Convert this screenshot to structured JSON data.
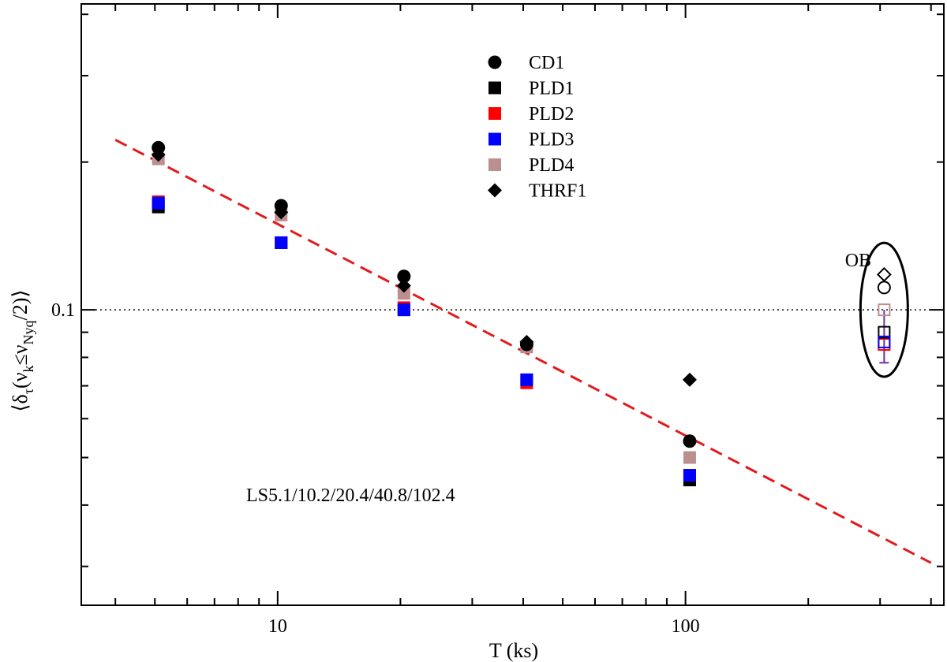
{
  "chart_data": {
    "type": "scatter",
    "xlabel": "T (ks)",
    "ylabel": {
      "open": "⟨",
      "delta": "δ",
      "delta_sub": "τ",
      "paren_open": "(",
      "nu": "ν",
      "nu_sub_k": "k",
      "leq": "≤",
      "nu_sub_nyq": "Nyq",
      "tail": "/2)",
      "close": "⟩"
    },
    "x_scale": "log",
    "y_scale": "log",
    "xlim": [
      3.3,
      430
    ],
    "ylim": [
      0.025,
      0.42
    ],
    "x_ticks": [
      {
        "value": 10,
        "label": "10"
      },
      {
        "value": 100,
        "label": "100"
      }
    ],
    "y_ticks": [
      {
        "value": 0.1,
        "label": "0.1"
      }
    ],
    "reference_line": {
      "y": 0.1,
      "style": "dotted"
    },
    "legend": {
      "placement": "top-center",
      "entries": [
        {
          "name": "CD1",
          "marker": "circle",
          "color": "#000000"
        },
        {
          "name": "PLD1",
          "marker": "square",
          "color": "#000000"
        },
        {
          "name": "PLD2",
          "marker": "square",
          "color": "#ff0000"
        },
        {
          "name": "PLD3",
          "marker": "square",
          "color": "#0000ff"
        },
        {
          "name": "PLD4",
          "marker": "square",
          "color": "#bc8f8f"
        },
        {
          "name": "THRF1",
          "marker": "diamond",
          "color": "#000000"
        }
      ]
    },
    "series": [
      {
        "name": "PLD1",
        "marker": "square",
        "color": "#000000",
        "points": [
          [
            5.1,
            0.162
          ],
          [
            10.2,
            0.137
          ],
          [
            20.4,
            0.1
          ],
          [
            40.8,
            0.072
          ],
          [
            102.4,
            0.045
          ]
        ]
      },
      {
        "name": "PLD2",
        "marker": "square",
        "color": "#ff0000",
        "points": [
          [
            5.1,
            0.166
          ],
          [
            10.2,
            0.137
          ],
          [
            20.4,
            0.101
          ],
          [
            40.8,
            0.071
          ],
          [
            102.4,
            0.046
          ]
        ]
      },
      {
        "name": "PLD3",
        "marker": "square",
        "color": "#0000ff",
        "points": [
          [
            5.1,
            0.165
          ],
          [
            10.2,
            0.137
          ],
          [
            20.4,
            0.1
          ],
          [
            40.8,
            0.072
          ],
          [
            102.4,
            0.046
          ]
        ]
      },
      {
        "name": "PLD4",
        "marker": "square",
        "color": "#bc8f8f",
        "points": [
          [
            5.1,
            0.203
          ],
          [
            10.2,
            0.156
          ],
          [
            20.4,
            0.108
          ],
          [
            40.8,
            0.084
          ],
          [
            102.4,
            0.05
          ]
        ]
      },
      {
        "name": "THRF1",
        "marker": "diamond",
        "color": "#000000",
        "points": [
          [
            5.1,
            0.207
          ],
          [
            10.2,
            0.158
          ],
          [
            20.4,
            0.112
          ],
          [
            40.8,
            0.086
          ],
          [
            102.4,
            0.072
          ]
        ]
      },
      {
        "name": "CD1",
        "marker": "circle",
        "color": "#000000",
        "points": [
          [
            5.1,
            0.214
          ],
          [
            10.2,
            0.163
          ],
          [
            20.4,
            0.117
          ],
          [
            40.8,
            0.085
          ],
          [
            102.4,
            0.054
          ]
        ]
      }
    ],
    "fit_line": {
      "style": "dashed",
      "color": "#e31a1c",
      "points": [
        [
          4,
          0.222
        ],
        [
          400,
          0.0305
        ]
      ]
    },
    "ob_group": {
      "label": "OB",
      "x": 307,
      "error_bar": [
        0.078,
        0.1
      ],
      "points": [
        {
          "name": "PLD2",
          "marker": "open-square",
          "color": "#ff0000",
          "y": 0.085
        },
        {
          "name": "PLD1",
          "marker": "open-square",
          "color": "#000000",
          "y": 0.09
        },
        {
          "name": "PLD3",
          "marker": "open-square",
          "color": "#0000ff",
          "y": 0.086
        },
        {
          "name": "PLD4",
          "marker": "open-square",
          "color": "#bc8f8f",
          "y": 0.1
        },
        {
          "name": "CD1",
          "marker": "open-circle",
          "color": "#000000",
          "y": 0.111
        },
        {
          "name": "THRF1",
          "marker": "open-diamond",
          "color": "#000000",
          "y": 0.118
        }
      ]
    },
    "annotation": "LS5.1/10.2/20.4/40.8/102.4"
  }
}
